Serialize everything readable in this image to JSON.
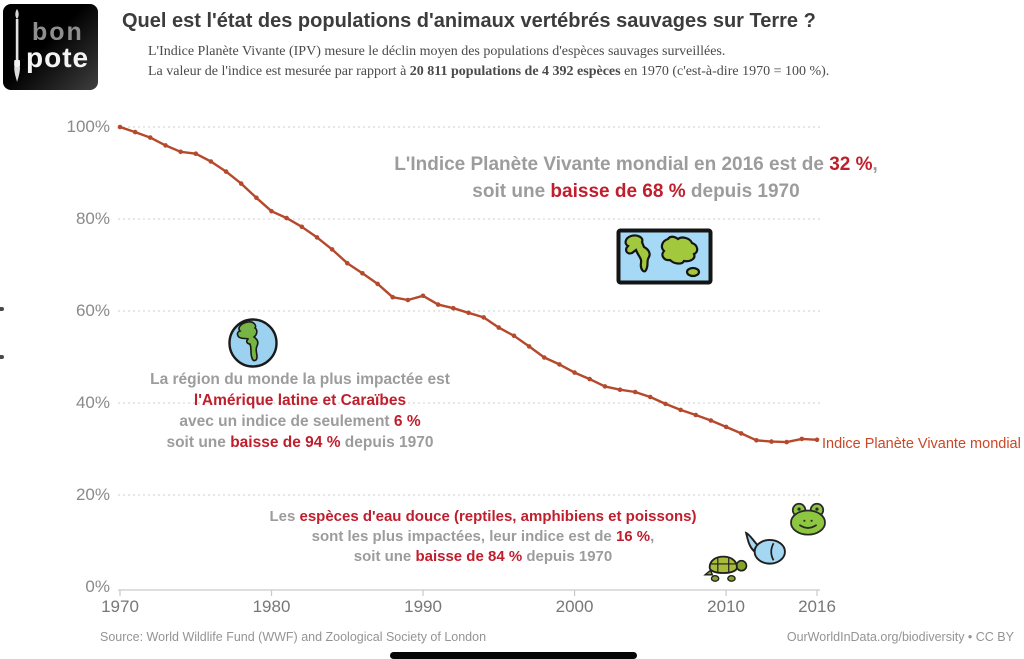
{
  "logo": {
    "word1": "bon",
    "word2": "pote"
  },
  "header": {
    "title": "Quel est l'état des populations d'animaux vertébrés sauvages sur Terre ?",
    "subtitle1": "L'Indice Planète Vivante (IPV) mesure le déclin moyen des populations d'espèces sauvages surveillées.",
    "subtitle2_prefix": "La valeur de l'indice est mesurée par rapport à ",
    "subtitle2_bold": "20 811 populations de 4 392 espèces",
    "subtitle2_suffix": " en 1970 (c'est-à-dire 1970 = 100 %)."
  },
  "annotations": {
    "headline": [
      [
        {
          "t": "L'Indice Planète Vivante mondial en 2016 est de "
        },
        {
          "t": "32 %",
          "r": true
        },
        {
          "t": ","
        }
      ],
      [
        {
          "t": "soit une "
        },
        {
          "t": "baisse de 68 %",
          "r": true
        },
        {
          "t": " depuis 1970"
        }
      ]
    ],
    "latam": [
      [
        {
          "t": "La région du monde la plus impactée est"
        }
      ],
      [
        {
          "t": "l'Amérique latine et Caraïbes",
          "r": true
        }
      ],
      [
        {
          "t": "avec un indice de seulement "
        },
        {
          "t": "6 %",
          "r": true
        }
      ],
      [
        {
          "t": "soit une "
        },
        {
          "t": "baisse de 94 %",
          "r": true
        },
        {
          "t": " depuis 1970"
        }
      ]
    ],
    "freshwater": [
      [
        {
          "t": "Les "
        },
        {
          "t": "espèces d'eau douce (reptiles, amphibiens et poissons)",
          "r": true
        }
      ],
      [
        {
          "t": "sont les plus impactées, leur indice est de "
        },
        {
          "t": "16 %",
          "r": true
        },
        {
          "t": ","
        }
      ],
      [
        {
          "t": "soit une "
        },
        {
          "t": "baisse de 84 %",
          "r": true
        },
        {
          "t": " depuis 1970"
        }
      ]
    ]
  },
  "series_label": "Indice Planète Vivante mondial",
  "footer": {
    "source": "Source: World Wildlife Fund (WWF) and Zoological Society of London",
    "attribution": "OurWorldInData.org/biodiversity • CC BY"
  },
  "icons": [
    "brush-icon",
    "world-map-icon",
    "globe-americas-icon",
    "frog-icon",
    "fish-icon",
    "turtle-icon"
  ],
  "colors": {
    "accent_red": "#bf1e2d",
    "line": "#b5492c",
    "line_label": "#ca4727",
    "annotation_gray": "#9c9c9c",
    "title": "#3c3c3c",
    "axis_label": "#8a8a8a",
    "grid": "#cfcfcf",
    "footer": "#949494",
    "map_water": "#a5d9f5",
    "map_land": "#a2c83e"
  },
  "chart_data": {
    "type": "line",
    "title": "Quel est l'état des populations d'animaux vertébrés sauvages sur Terre ?",
    "xlabel": "",
    "ylabel": "",
    "xlim": [
      1970,
      2016
    ],
    "ylim": [
      0,
      100
    ],
    "xticks": [
      1970,
      1980,
      1990,
      2000,
      2010,
      2016
    ],
    "yticks": [
      0,
      20,
      40,
      60,
      80,
      100
    ],
    "ytick_suffix": "%",
    "grid": "horizontal-dotted",
    "legend_position": "end-of-line-label",
    "series": [
      {
        "name": "Indice Planète Vivante mondial",
        "x": [
          1970,
          1971,
          1972,
          1973,
          1974,
          1975,
          1976,
          1977,
          1978,
          1979,
          1980,
          1981,
          1982,
          1983,
          1984,
          1985,
          1986,
          1987,
          1988,
          1989,
          1990,
          1991,
          1992,
          1993,
          1994,
          1995,
          1996,
          1997,
          1998,
          1999,
          2000,
          2001,
          2002,
          2003,
          2004,
          2005,
          2006,
          2007,
          2008,
          2009,
          2010,
          2011,
          2012,
          2013,
          2014,
          2015,
          2016
        ],
        "values": [
          100,
          98.9,
          97.7,
          96.0,
          94.6,
          94.2,
          92.5,
          90.3,
          87.7,
          84.6,
          81.7,
          80.2,
          78.3,
          76.0,
          73.4,
          70.4,
          68.2,
          65.9,
          63.0,
          62.4,
          63.3,
          61.4,
          60.6,
          59.6,
          58.6,
          56.4,
          54.6,
          52.3,
          49.9,
          48.4,
          46.6,
          45.2,
          43.6,
          42.9,
          42.4,
          41.3,
          39.8,
          38.5,
          37.4,
          36.2,
          34.8,
          33.4,
          31.9,
          31.6,
          31.5,
          32.2,
          32.0
        ]
      }
    ],
    "key_values": {
      "global_index_2016": "32 %",
      "global_decline_since_1970": "68 %",
      "latin_america_caribbean_index": "6 %",
      "latin_america_caribbean_decline": "94 %",
      "freshwater_index": "16 %",
      "freshwater_decline": "84 %"
    }
  }
}
